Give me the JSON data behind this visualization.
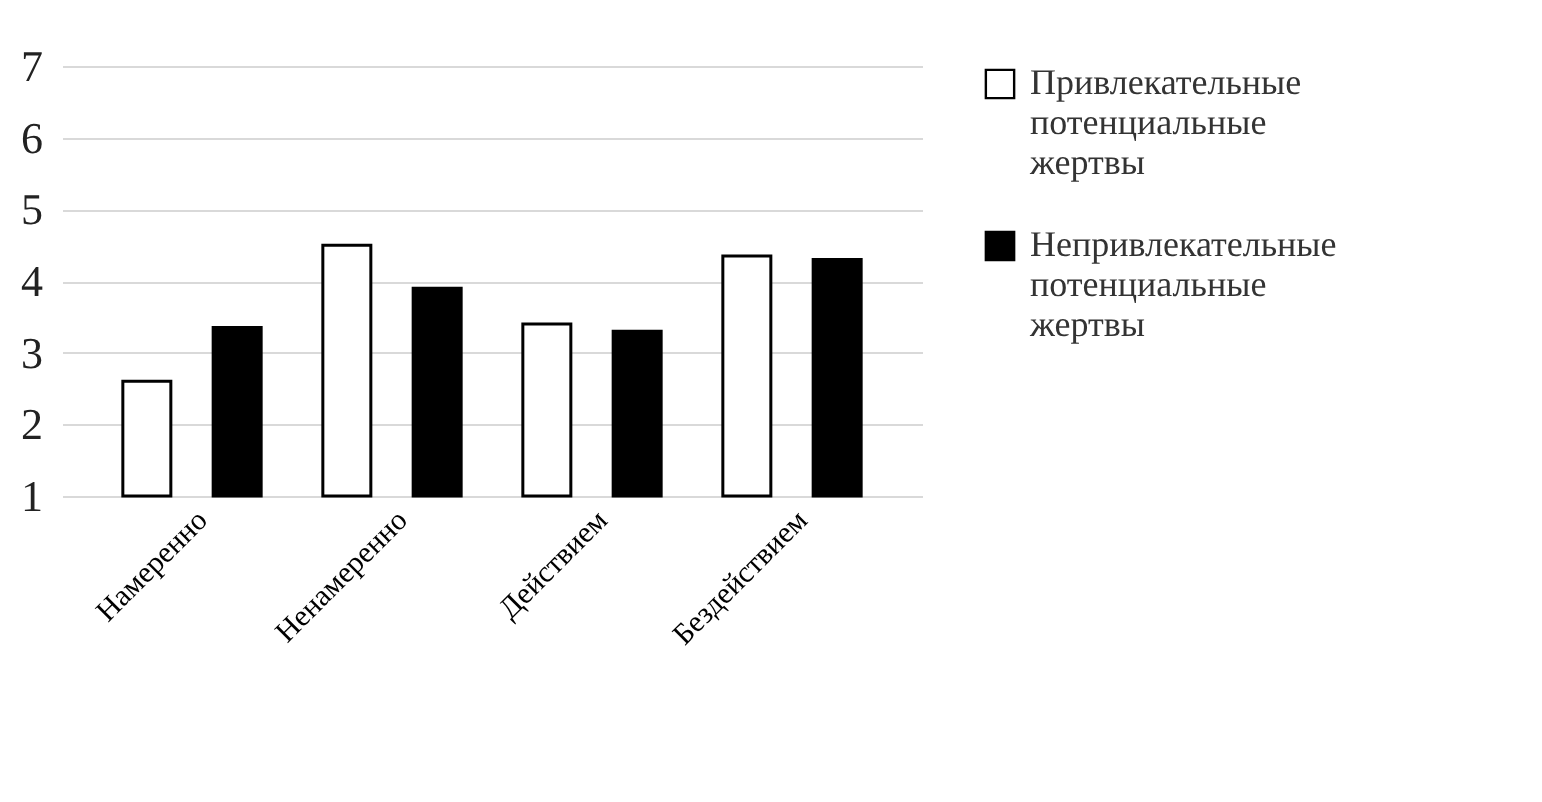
{
  "chart_data": {
    "type": "bar",
    "categories": [
      "Намеренно",
      "Ненамеренно",
      "Действием",
      "Бездействием"
    ],
    "series": [
      {
        "name": "Привлекательные потенциальные жертвы",
        "color": "#ffffff",
        "values": [
          2.6,
          4.5,
          3.4,
          4.35
        ]
      },
      {
        "name": "Непривлекательные потенциальные жертвы",
        "color": "#000000",
        "values": [
          3.35,
          3.9,
          3.3,
          4.3
        ]
      }
    ],
    "ylim": [
      1,
      7
    ],
    "yticks": [
      1,
      2,
      3,
      4,
      5,
      6,
      7
    ],
    "grid": "y",
    "legend": "right"
  }
}
